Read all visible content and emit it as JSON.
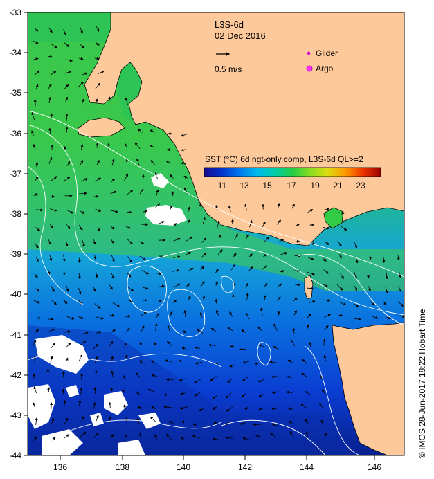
{
  "map": {
    "product": "L3S-6d",
    "date": "02 Dec 2016",
    "vector_scale_label": "0.5 m/s",
    "legend": {
      "glider": {
        "label": "Glider",
        "color": "#d400d4"
      },
      "argo": {
        "label": "Argo",
        "color": "#ff33ff"
      }
    },
    "colorbar": {
      "title": "SST (°C) 6d ngt-only comp, L3S-6d QL>=2",
      "min": 10,
      "max": 25,
      "ticks": [
        "11",
        "13",
        "15",
        "17",
        "19",
        "21",
        "23"
      ],
      "palette": [
        "#1a0a8c",
        "#0033cc",
        "#0077ee",
        "#00bbee",
        "#00ccaa",
        "#22cc44",
        "#88dd22",
        "#dddd11",
        "#ff9900",
        "#ee3300",
        "#990000"
      ]
    },
    "axes": {
      "lon_ticks": [
        "136",
        "138",
        "140",
        "142",
        "144",
        "146"
      ],
      "lat_ticks": [
        "-33",
        "-34",
        "-35",
        "-36",
        "-37",
        "-38",
        "-39",
        "-40",
        "-41",
        "-42",
        "-43",
        "-44"
      ],
      "lon_range": [
        135,
        147
      ],
      "lat_range": [
        -44,
        -33
      ]
    },
    "credit": "© IMOS 28-Jun-2017 18:22 Hobart Time",
    "colors": {
      "land": "#fdc89a",
      "no_data": "#ffffff",
      "contour": "#ffffff",
      "arrow": "#000000"
    }
  }
}
